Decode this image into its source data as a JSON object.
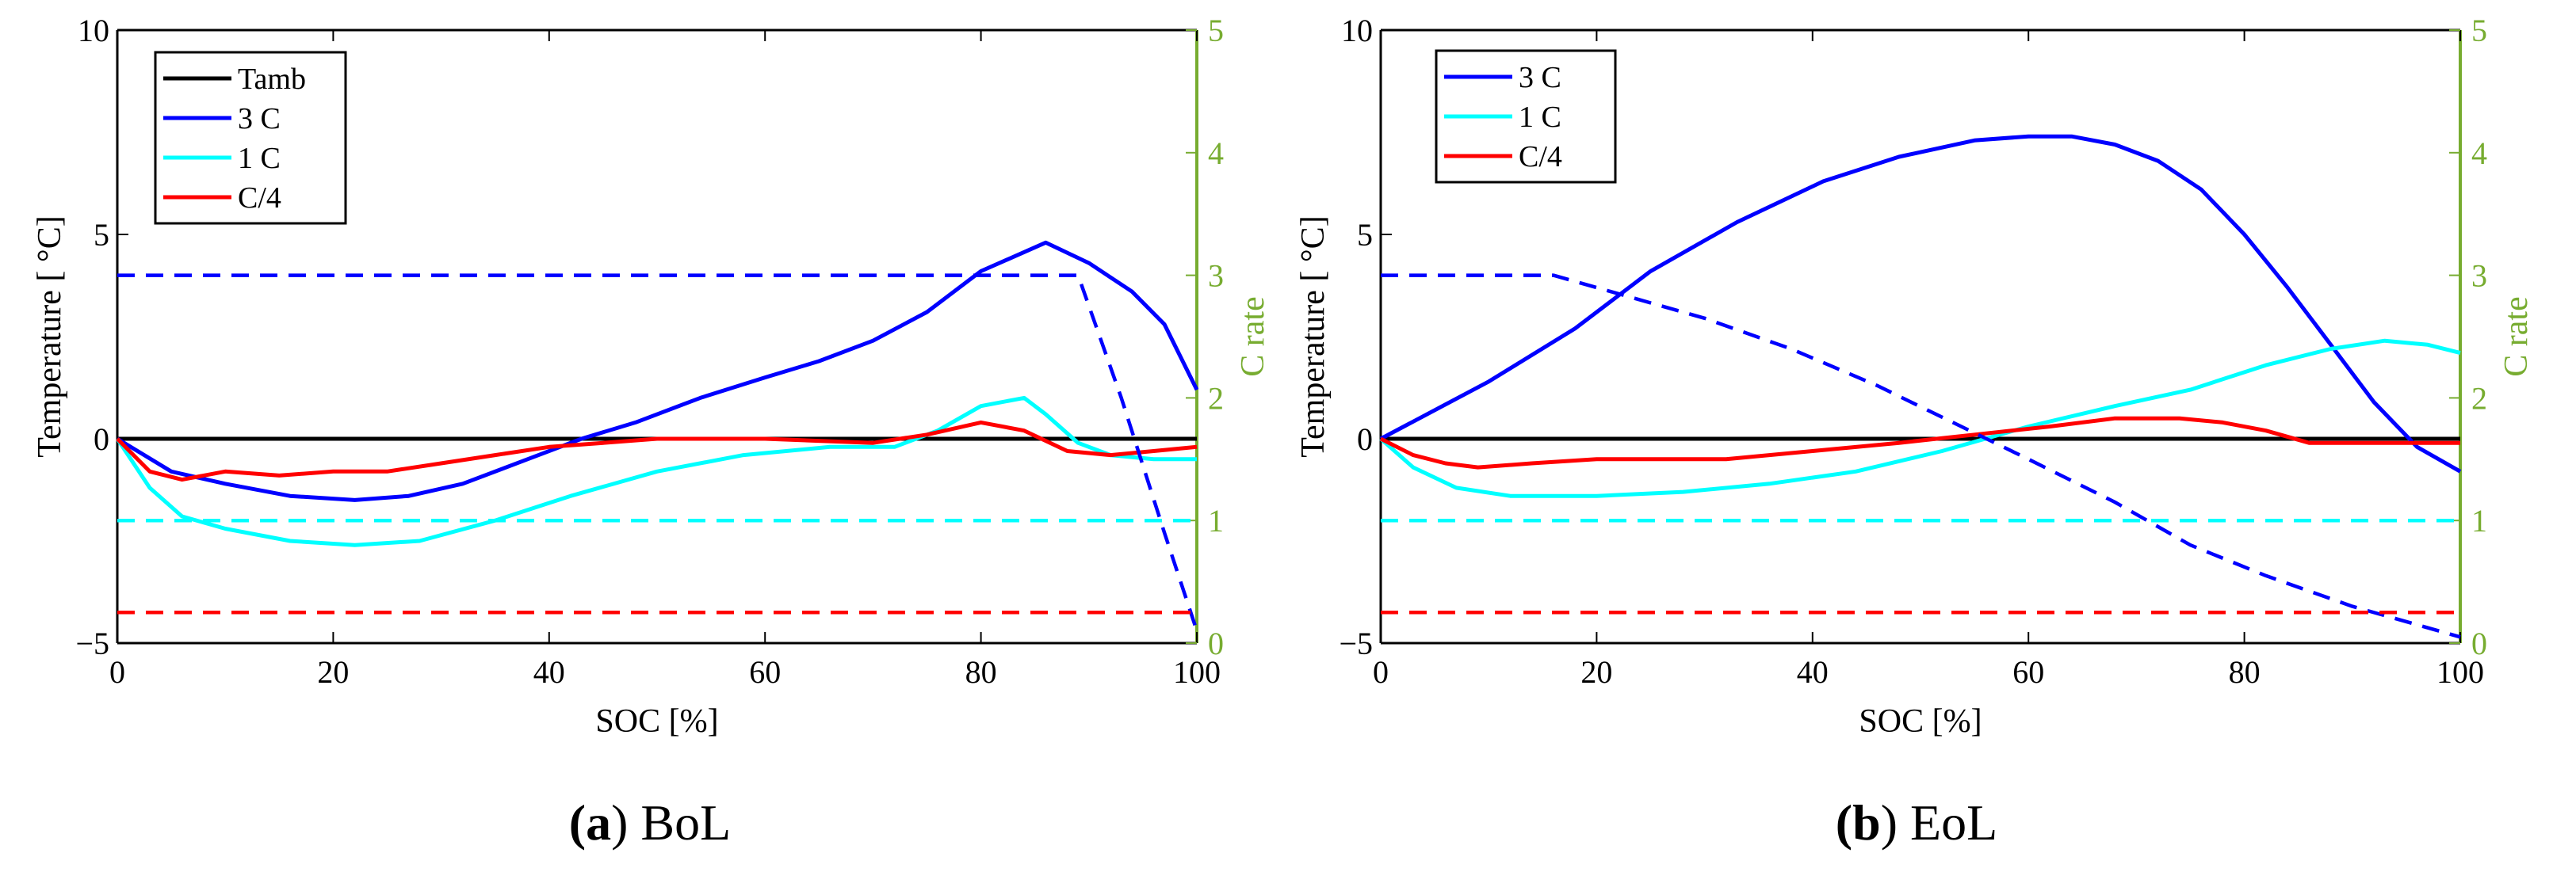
{
  "chart_data": [
    {
      "type": "line",
      "caption_letter": "(a)",
      "caption_text": "BoL",
      "xlabel": "SOC [%]",
      "ylabel": "Temperature [ °C]",
      "ylabel_right": "C rate",
      "xlim": [
        0,
        100
      ],
      "ylim": [
        -5,
        10
      ],
      "ylim_right": [
        0,
        5
      ],
      "xticks": [
        "0",
        "20",
        "40",
        "60",
        "80",
        "100"
      ],
      "yticks": [
        "−5",
        "0",
        "5",
        "10"
      ],
      "yticks_right": [
        "0",
        "1",
        "2",
        "3",
        "4",
        "5"
      ],
      "legend_position": "top-left",
      "legend": [
        "Tamb",
        "3 C",
        "1 C",
        "C/4"
      ],
      "series": [
        {
          "name": "Tamb",
          "axis": "left",
          "color": "#000000",
          "style": "solid",
          "x": [
            0,
            100
          ],
          "y": [
            0,
            0
          ]
        },
        {
          "name": "3 C",
          "axis": "left",
          "color": "#0000FF",
          "style": "solid",
          "x": [
            0,
            5,
            10,
            16,
            22,
            27,
            32,
            38,
            43,
            48,
            54,
            60,
            65,
            70,
            75,
            80,
            86,
            90,
            94,
            97,
            100
          ],
          "y": [
            0,
            -0.8,
            -1.1,
            -1.4,
            -1.5,
            -1.4,
            -1.1,
            -0.5,
            0.0,
            0.4,
            1.0,
            1.5,
            1.9,
            2.4,
            3.1,
            4.1,
            4.8,
            4.3,
            3.6,
            2.8,
            1.2
          ]
        },
        {
          "name": "1 C",
          "axis": "left",
          "color": "#00FFFF",
          "style": "solid",
          "x": [
            0,
            3,
            6,
            10,
            16,
            22,
            28,
            35,
            42,
            50,
            58,
            66,
            72,
            76,
            80,
            84,
            86,
            89,
            92,
            96,
            100
          ],
          "y": [
            0,
            -1.2,
            -1.9,
            -2.2,
            -2.5,
            -2.6,
            -2.5,
            -2.0,
            -1.4,
            -0.8,
            -0.4,
            -0.2,
            -0.2,
            0.2,
            0.8,
            1.0,
            0.6,
            -0.1,
            -0.4,
            -0.5,
            -0.5
          ]
        },
        {
          "name": "C/4",
          "axis": "left",
          "color": "#FF0000",
          "style": "solid",
          "x": [
            0,
            3,
            6,
            10,
            15,
            20,
            25,
            30,
            35,
            40,
            45,
            50,
            60,
            70,
            75,
            80,
            84,
            88,
            92,
            96,
            100
          ],
          "y": [
            0,
            -0.8,
            -1.0,
            -0.8,
            -0.9,
            -0.8,
            -0.8,
            -0.6,
            -0.4,
            -0.2,
            -0.1,
            0.0,
            0.0,
            -0.1,
            0.1,
            0.4,
            0.2,
            -0.3,
            -0.4,
            -0.3,
            -0.2
          ]
        },
        {
          "name": "",
          "axis": "right",
          "color": "#0000FF",
          "style": "dashed",
          "x": [
            0,
            89,
            93,
            97,
            100
          ],
          "y": [
            3,
            3,
            2.0,
            0.9,
            0.1
          ]
        },
        {
          "name": "",
          "axis": "right",
          "color": "#00FFFF",
          "style": "dashed",
          "x": [
            0,
            100
          ],
          "y": [
            1,
            1
          ]
        },
        {
          "name": "",
          "axis": "right",
          "color": "#FF0000",
          "style": "dashed",
          "x": [
            0,
            100
          ],
          "y": [
            0.25,
            0.25
          ]
        }
      ]
    },
    {
      "type": "line",
      "caption_letter": "(b)",
      "caption_text": "EoL",
      "xlabel": "SOC [%]",
      "ylabel": "Temperature [ °C]",
      "ylabel_right": "C rate",
      "xlim": [
        0,
        100
      ],
      "ylim": [
        -5,
        10
      ],
      "ylim_right": [
        0,
        5
      ],
      "xticks": [
        "0",
        "20",
        "40",
        "60",
        "80",
        "100"
      ],
      "yticks": [
        "−5",
        "0",
        "5",
        "10"
      ],
      "yticks_right": [
        "0",
        "1",
        "2",
        "3",
        "4",
        "5"
      ],
      "legend_position": "top-left",
      "legend": [
        "3 C",
        "1 C",
        "C/4"
      ],
      "series": [
        {
          "name": "",
          "axis": "left",
          "color": "#000000",
          "style": "solid",
          "x": [
            0,
            100
          ],
          "y": [
            0,
            0
          ]
        },
        {
          "name": "3 C",
          "axis": "left",
          "color": "#0000FF",
          "style": "solid",
          "x": [
            0,
            10,
            18,
            25,
            33,
            41,
            48,
            55,
            60,
            64,
            68,
            72,
            76,
            80,
            84,
            88,
            92,
            96,
            100
          ],
          "y": [
            0,
            1.4,
            2.7,
            4.1,
            5.3,
            6.3,
            6.9,
            7.3,
            7.4,
            7.4,
            7.2,
            6.8,
            6.1,
            5.0,
            3.7,
            2.3,
            0.9,
            -0.2,
            -0.8
          ]
        },
        {
          "name": "1 C",
          "axis": "left",
          "color": "#00FFFF",
          "style": "solid",
          "x": [
            0,
            3,
            7,
            12,
            20,
            28,
            36,
            44,
            52,
            60,
            68,
            75,
            82,
            88,
            93,
            97,
            100
          ],
          "y": [
            0,
            -0.7,
            -1.2,
            -1.4,
            -1.4,
            -1.3,
            -1.1,
            -0.8,
            -0.3,
            0.3,
            0.8,
            1.2,
            1.8,
            2.2,
            2.4,
            2.3,
            2.1
          ]
        },
        {
          "name": "C/4",
          "axis": "left",
          "color": "#FF0000",
          "style": "solid",
          "x": [
            0,
            3,
            6,
            9,
            14,
            20,
            26,
            32,
            40,
            48,
            55,
            62,
            68,
            74,
            78,
            82,
            86,
            90,
            95,
            100
          ],
          "y": [
            0,
            -0.4,
            -0.6,
            -0.7,
            -0.6,
            -0.5,
            -0.5,
            -0.5,
            -0.3,
            -0.1,
            0.1,
            0.3,
            0.5,
            0.5,
            0.4,
            0.2,
            -0.1,
            -0.1,
            -0.1,
            -0.1
          ]
        },
        {
          "name": "",
          "axis": "right",
          "color": "#0000FF",
          "style": "dashed",
          "x": [
            0,
            16,
            22,
            30,
            38,
            46,
            53,
            60,
            68,
            75,
            82,
            90,
            96,
            100
          ],
          "y": [
            3,
            3,
            2.85,
            2.65,
            2.4,
            2.1,
            1.8,
            1.5,
            1.15,
            0.8,
            0.55,
            0.3,
            0.15,
            0.05
          ]
        },
        {
          "name": "",
          "axis": "right",
          "color": "#00FFFF",
          "style": "dashed",
          "x": [
            0,
            100
          ],
          "y": [
            1,
            1
          ]
        },
        {
          "name": "",
          "axis": "right",
          "color": "#FF0000",
          "style": "dashed",
          "x": [
            0,
            100
          ],
          "y": [
            0.25,
            0.25
          ]
        }
      ]
    }
  ]
}
